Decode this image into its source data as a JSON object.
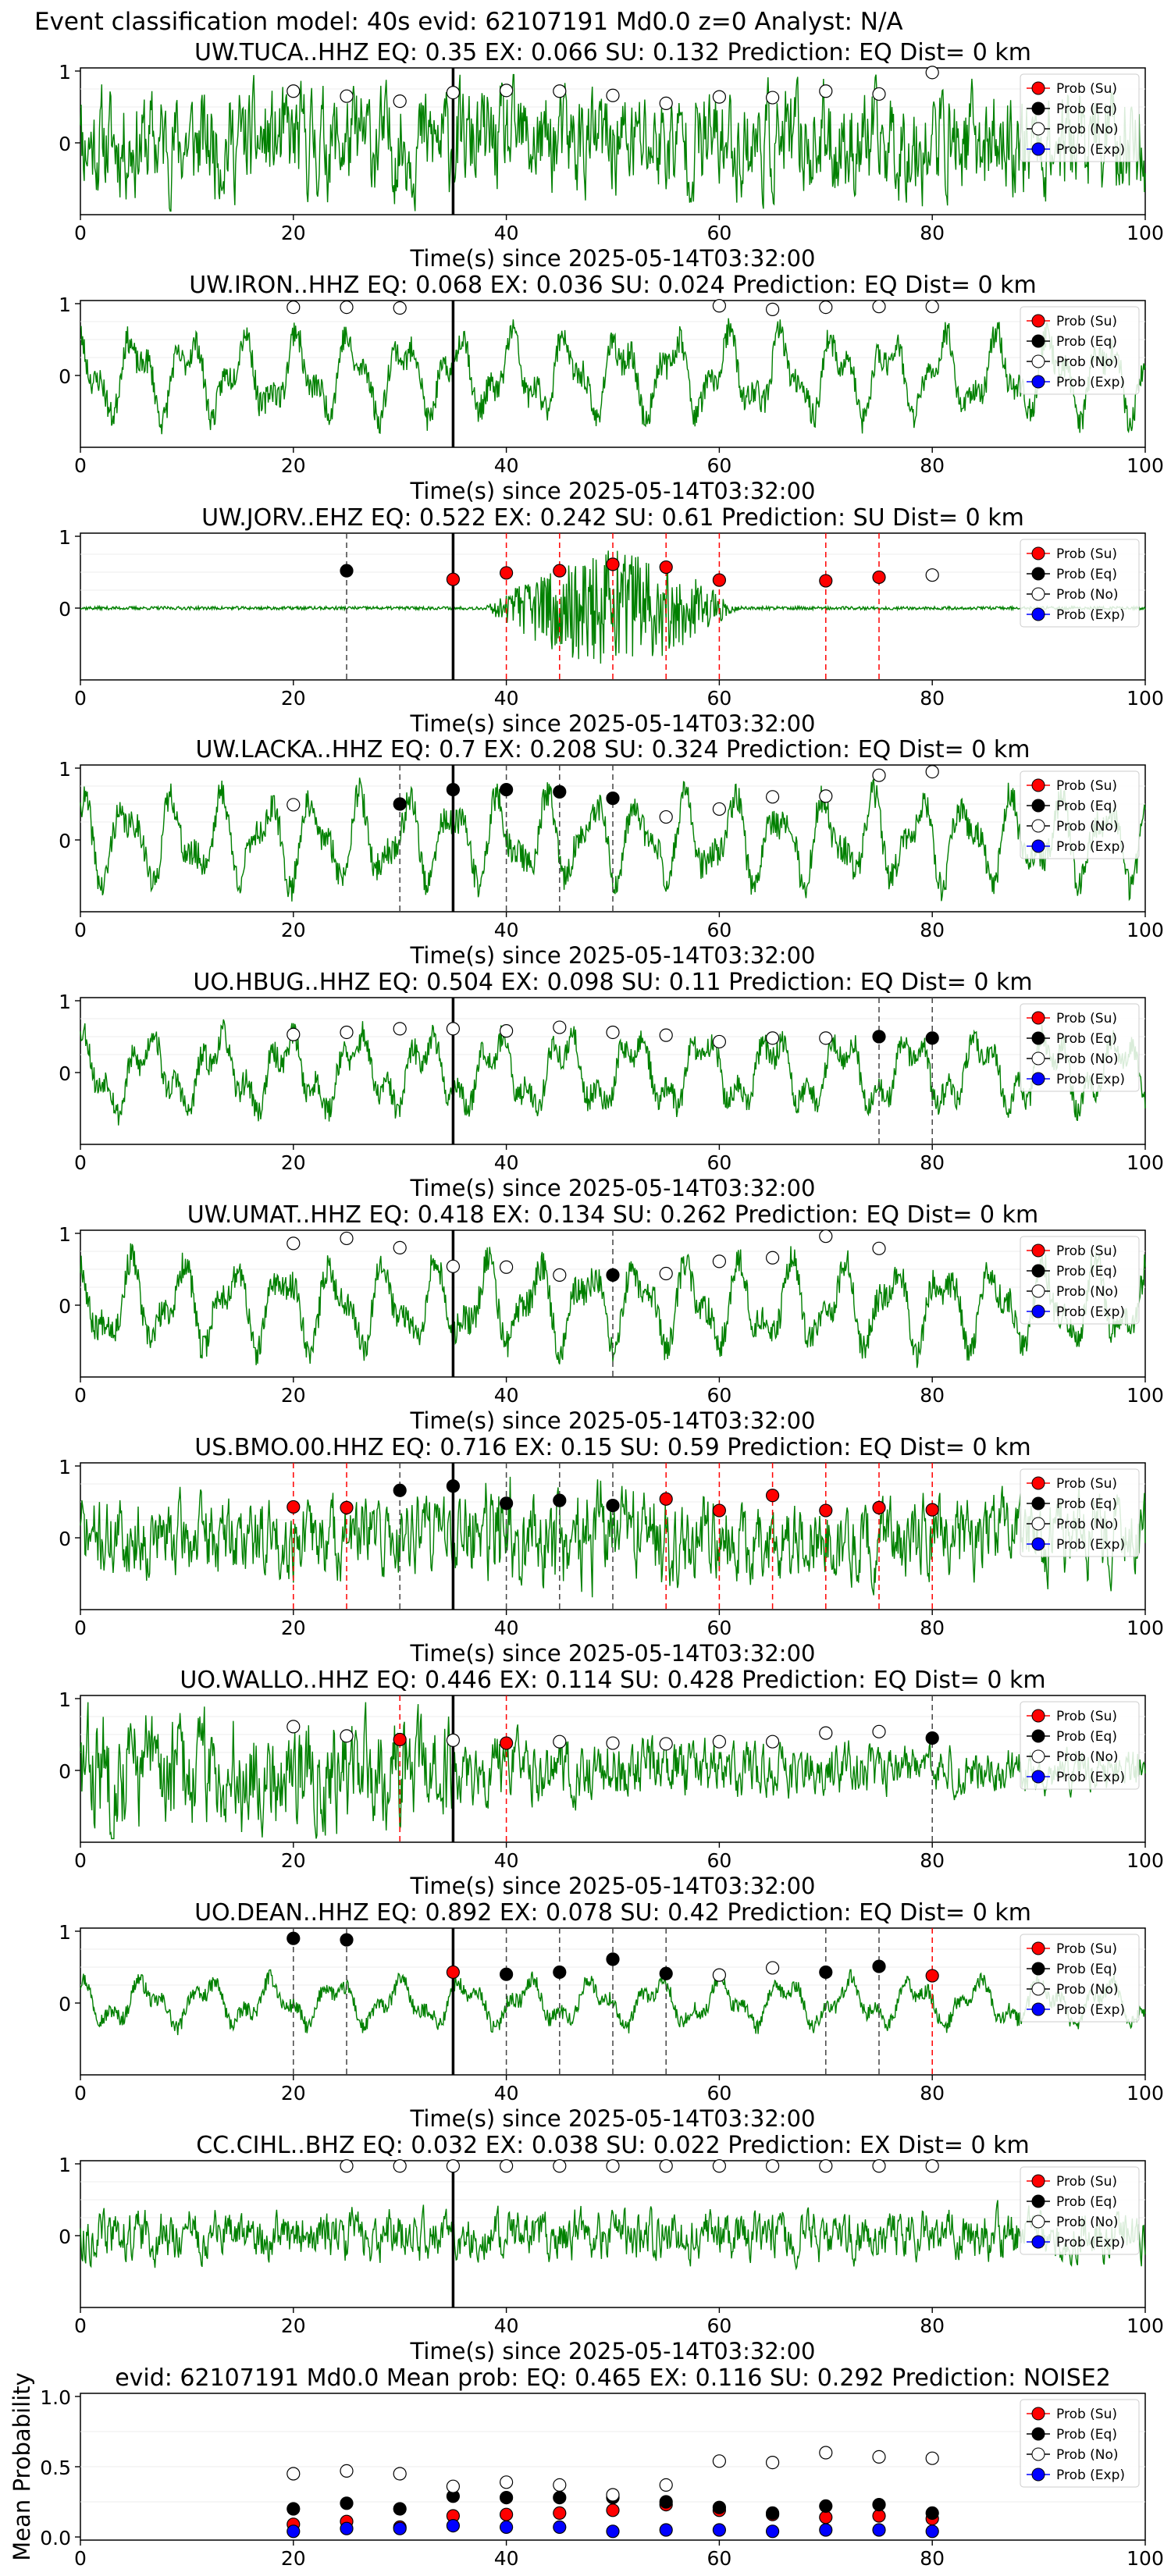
{
  "figure_title": "Event classification model: 40s evid: 62107191 Md0.0 z=0 Analyst: N/A",
  "colors": {
    "su": "#ff0000",
    "eq": "#000000",
    "no": "#ffffff",
    "exp": "#0000ff",
    "wave": "#008000",
    "pick": "#000000"
  },
  "chart_data": [
    {
      "type": "line",
      "title": "UW.TUCA..HHZ   EQ: 0.35  EX: 0.066  SU: 0.132   Prediction: EQ    Dist= 0 km",
      "xlabel": "Time(s) since 2025-05-14T03:32:00",
      "xlim": [
        0,
        100
      ],
      "xticks": [
        "0",
        "20",
        "40",
        "60",
        "80",
        "100"
      ],
      "yticks": [
        "1",
        "0"
      ],
      "pick_time": 35,
      "wave": {
        "seed": 11,
        "type": "noise",
        "amp": 0.75,
        "event": false
      },
      "legend": [
        "Prob (Su)",
        "Prob (Eq)",
        "Prob (No)",
        "Prob (Exp)"
      ],
      "points": [
        {
          "x": 20,
          "cls": "no",
          "p": 0.72
        },
        {
          "x": 25,
          "cls": "no",
          "p": 0.65
        },
        {
          "x": 30,
          "cls": "no",
          "p": 0.58
        },
        {
          "x": 35,
          "cls": "no",
          "p": 0.7
        },
        {
          "x": 40,
          "cls": "no",
          "p": 0.73
        },
        {
          "x": 45,
          "cls": "no",
          "p": 0.72
        },
        {
          "x": 50,
          "cls": "no",
          "p": 0.66
        },
        {
          "x": 55,
          "cls": "no",
          "p": 0.55
        },
        {
          "x": 60,
          "cls": "no",
          "p": 0.64
        },
        {
          "x": 65,
          "cls": "no",
          "p": 0.63
        },
        {
          "x": 70,
          "cls": "no",
          "p": 0.72
        },
        {
          "x": 75,
          "cls": "no",
          "p": 0.68
        },
        {
          "x": 80,
          "cls": "no",
          "p": 0.98
        }
      ]
    },
    {
      "type": "line",
      "title": "UW.IRON..HHZ   EQ: 0.068  EX: 0.036  SU: 0.024   Prediction: EQ    Dist= 0 km",
      "xlabel": "Time(s) since 2025-05-14T03:32:00",
      "xlim": [
        0,
        100
      ],
      "xticks": [
        "0",
        "20",
        "40",
        "60",
        "80",
        "100"
      ],
      "yticks": [
        "1",
        "0"
      ],
      "pick_time": 35,
      "wave": {
        "seed": 23,
        "type": "osc",
        "amp": 0.8,
        "event": false
      },
      "legend": [
        "Prob (Su)",
        "Prob (Eq)",
        "Prob (No)",
        "Prob (Exp)"
      ],
      "points": [
        {
          "x": 20,
          "cls": "no",
          "p": 0.95
        },
        {
          "x": 25,
          "cls": "no",
          "p": 0.95
        },
        {
          "x": 30,
          "cls": "no",
          "p": 0.94
        },
        {
          "x": 60,
          "cls": "no",
          "p": 0.97
        },
        {
          "x": 65,
          "cls": "no",
          "p": 0.92
        },
        {
          "x": 70,
          "cls": "no",
          "p": 0.95
        },
        {
          "x": 75,
          "cls": "no",
          "p": 0.96
        },
        {
          "x": 80,
          "cls": "no",
          "p": 0.96
        }
      ]
    },
    {
      "type": "line",
      "title": "UW.JORV..EHZ   EQ: 0.522  EX: 0.242  SU: 0.61   Prediction: SU    Dist= 0 km",
      "xlabel": "Time(s) since 2025-05-14T03:32:00",
      "xlim": [
        0,
        100
      ],
      "xticks": [
        "0",
        "20",
        "40",
        "60",
        "80",
        "100"
      ],
      "yticks": [
        "1",
        "0"
      ],
      "pick_time": 35,
      "wave": {
        "seed": 37,
        "type": "quiet",
        "amp": 0.08,
        "event": true,
        "ev_start": 38,
        "ev_end": 62,
        "ev_amp": 0.85
      },
      "legend": [
        "Prob (Su)",
        "Prob (Eq)",
        "Prob (No)",
        "Prob (Exp)"
      ],
      "points": [
        {
          "x": 25,
          "cls": "eq",
          "p": 0.52
        },
        {
          "x": 35,
          "cls": "su",
          "p": 0.4
        },
        {
          "x": 40,
          "cls": "su",
          "p": 0.49
        },
        {
          "x": 45,
          "cls": "su",
          "p": 0.52
        },
        {
          "x": 50,
          "cls": "su",
          "p": 0.61
        },
        {
          "x": 55,
          "cls": "su",
          "p": 0.57
        },
        {
          "x": 60,
          "cls": "su",
          "p": 0.39
        },
        {
          "x": 70,
          "cls": "su",
          "p": 0.38
        },
        {
          "x": 75,
          "cls": "su",
          "p": 0.43
        },
        {
          "x": 80,
          "cls": "no",
          "p": 0.46
        }
      ]
    },
    {
      "type": "line",
      "title": "UW.LACKA..HHZ   EQ: 0.7  EX: 0.208  SU: 0.324   Prediction: EQ    Dist= 0 km",
      "xlabel": "Time(s) since 2025-05-14T03:32:00",
      "xlim": [
        0,
        100
      ],
      "xticks": [
        "0",
        "20",
        "40",
        "60",
        "80",
        "100"
      ],
      "yticks": [
        "1",
        "0"
      ],
      "pick_time": 35,
      "wave": {
        "seed": 41,
        "type": "osc",
        "amp": 0.85,
        "event": false
      },
      "legend": [
        "Prob (Su)",
        "Prob (Eq)",
        "Prob (No)",
        "Prob (Exp)"
      ],
      "points": [
        {
          "x": 20,
          "cls": "no",
          "p": 0.49
        },
        {
          "x": 30,
          "cls": "eq",
          "p": 0.5
        },
        {
          "x": 35,
          "cls": "eq",
          "p": 0.7
        },
        {
          "x": 40,
          "cls": "eq",
          "p": 0.7
        },
        {
          "x": 45,
          "cls": "eq",
          "p": 0.67
        },
        {
          "x": 50,
          "cls": "eq",
          "p": 0.58
        },
        {
          "x": 55,
          "cls": "no",
          "p": 0.32
        },
        {
          "x": 60,
          "cls": "no",
          "p": 0.43
        },
        {
          "x": 65,
          "cls": "no",
          "p": 0.6
        },
        {
          "x": 70,
          "cls": "no",
          "p": 0.61
        },
        {
          "x": 75,
          "cls": "no",
          "p": 0.9
        },
        {
          "x": 80,
          "cls": "no",
          "p": 0.95
        }
      ]
    },
    {
      "type": "line",
      "title": "UO.HBUG..HHZ   EQ: 0.504  EX: 0.098  SU: 0.11   Prediction: EQ    Dist= 0 km",
      "xlabel": "Time(s) since 2025-05-14T03:32:00",
      "xlim": [
        0,
        100
      ],
      "xticks": [
        "0",
        "20",
        "40",
        "60",
        "80",
        "100"
      ],
      "yticks": [
        "1",
        "0"
      ],
      "pick_time": 35,
      "wave": {
        "seed": 53,
        "type": "osc",
        "amp": 0.75,
        "event": false
      },
      "legend": [
        "Prob (Su)",
        "Prob (Eq)",
        "Prob (No)",
        "Prob (Exp)"
      ],
      "points": [
        {
          "x": 20,
          "cls": "no",
          "p": 0.53
        },
        {
          "x": 25,
          "cls": "no",
          "p": 0.56
        },
        {
          "x": 30,
          "cls": "no",
          "p": 0.61
        },
        {
          "x": 35,
          "cls": "no",
          "p": 0.61
        },
        {
          "x": 40,
          "cls": "no",
          "p": 0.58
        },
        {
          "x": 45,
          "cls": "no",
          "p": 0.63
        },
        {
          "x": 50,
          "cls": "no",
          "p": 0.56
        },
        {
          "x": 55,
          "cls": "no",
          "p": 0.52
        },
        {
          "x": 60,
          "cls": "no",
          "p": 0.43
        },
        {
          "x": 65,
          "cls": "no",
          "p": 0.48
        },
        {
          "x": 70,
          "cls": "no",
          "p": 0.48
        },
        {
          "x": 75,
          "cls": "eq",
          "p": 0.5
        },
        {
          "x": 80,
          "cls": "eq",
          "p": 0.48
        }
      ]
    },
    {
      "type": "line",
      "title": "UW.UMAT..HHZ   EQ: 0.418  EX: 0.134  SU: 0.262   Prediction: EQ    Dist= 0 km",
      "xlabel": "Time(s) since 2025-05-14T03:32:00",
      "xlim": [
        0,
        100
      ],
      "xticks": [
        "0",
        "20",
        "40",
        "60",
        "80",
        "100"
      ],
      "yticks": [
        "1",
        "0"
      ],
      "pick_time": 35,
      "wave": {
        "seed": 67,
        "type": "osc",
        "amp": 0.85,
        "event": false
      },
      "legend": [
        "Prob (Su)",
        "Prob (Eq)",
        "Prob (No)",
        "Prob (Exp)"
      ],
      "points": [
        {
          "x": 20,
          "cls": "no",
          "p": 0.86
        },
        {
          "x": 25,
          "cls": "no",
          "p": 0.93
        },
        {
          "x": 30,
          "cls": "no",
          "p": 0.8
        },
        {
          "x": 35,
          "cls": "no",
          "p": 0.54
        },
        {
          "x": 40,
          "cls": "no",
          "p": 0.53
        },
        {
          "x": 45,
          "cls": "no",
          "p": 0.42
        },
        {
          "x": 50,
          "cls": "eq",
          "p": 0.42
        },
        {
          "x": 55,
          "cls": "no",
          "p": 0.44
        },
        {
          "x": 60,
          "cls": "no",
          "p": 0.61
        },
        {
          "x": 65,
          "cls": "no",
          "p": 0.66
        },
        {
          "x": 70,
          "cls": "no",
          "p": 0.96
        },
        {
          "x": 75,
          "cls": "no",
          "p": 0.79
        }
      ]
    },
    {
      "type": "line",
      "title": "US.BMO.00.HHZ   EQ: 0.716  EX: 0.15  SU: 0.59   Prediction: EQ    Dist= 0 km",
      "xlabel": "Time(s) since 2025-05-14T03:32:00",
      "xlim": [
        0,
        100
      ],
      "xticks": [
        "0",
        "20",
        "40",
        "60",
        "80",
        "100"
      ],
      "yticks": [
        "1",
        "0"
      ],
      "pick_time": 35,
      "wave": {
        "seed": 71,
        "type": "noise",
        "amp": 0.55,
        "event": true,
        "ev_start": 30,
        "ev_end": 60,
        "ev_amp": 0.35
      },
      "legend": [
        "Prob (Su)",
        "Prob (Eq)",
        "Prob (No)",
        "Prob (Exp)"
      ],
      "points": [
        {
          "x": 20,
          "cls": "su",
          "p": 0.43
        },
        {
          "x": 25,
          "cls": "su",
          "p": 0.42
        },
        {
          "x": 30,
          "cls": "eq",
          "p": 0.66
        },
        {
          "x": 35,
          "cls": "eq",
          "p": 0.72
        },
        {
          "x": 40,
          "cls": "eq",
          "p": 0.48
        },
        {
          "x": 45,
          "cls": "eq",
          "p": 0.52
        },
        {
          "x": 50,
          "cls": "eq",
          "p": 0.45
        },
        {
          "x": 55,
          "cls": "su",
          "p": 0.54
        },
        {
          "x": 60,
          "cls": "su",
          "p": 0.38
        },
        {
          "x": 65,
          "cls": "su",
          "p": 0.59
        },
        {
          "x": 70,
          "cls": "su",
          "p": 0.38
        },
        {
          "x": 75,
          "cls": "su",
          "p": 0.42
        },
        {
          "x": 80,
          "cls": "su",
          "p": 0.39
        }
      ]
    },
    {
      "type": "line",
      "title": "UO.WALLO..HHZ   EQ: 0.446  EX: 0.114  SU: 0.428   Prediction: EQ    Dist= 0 km",
      "xlabel": "Time(s) since 2025-05-14T03:32:00",
      "xlim": [
        0,
        100
      ],
      "xticks": [
        "0",
        "20",
        "40",
        "60",
        "80",
        "100"
      ],
      "yticks": [
        "1",
        "0"
      ],
      "pick_time": 35,
      "wave": {
        "seed": 83,
        "type": "noise",
        "amp": 0.8,
        "event": false,
        "decay": true
      },
      "legend": [
        "Prob (Su)",
        "Prob (Eq)",
        "Prob (No)",
        "Prob (Exp)"
      ],
      "points": [
        {
          "x": 20,
          "cls": "no",
          "p": 0.61
        },
        {
          "x": 25,
          "cls": "no",
          "p": 0.48
        },
        {
          "x": 30,
          "cls": "su",
          "p": 0.43
        },
        {
          "x": 35,
          "cls": "no",
          "p": 0.42
        },
        {
          "x": 40,
          "cls": "su",
          "p": 0.38
        },
        {
          "x": 45,
          "cls": "no",
          "p": 0.4
        },
        {
          "x": 50,
          "cls": "no",
          "p": 0.38
        },
        {
          "x": 55,
          "cls": "no",
          "p": 0.37
        },
        {
          "x": 60,
          "cls": "no",
          "p": 0.4
        },
        {
          "x": 65,
          "cls": "no",
          "p": 0.4
        },
        {
          "x": 70,
          "cls": "no",
          "p": 0.52
        },
        {
          "x": 75,
          "cls": "no",
          "p": 0.54
        },
        {
          "x": 80,
          "cls": "eq",
          "p": 0.45
        }
      ]
    },
    {
      "type": "line",
      "title": "UO.DEAN..HHZ   EQ: 0.892  EX: 0.078  SU: 0.42   Prediction: EQ    Dist= 0 km",
      "xlabel": "Time(s) since 2025-05-14T03:32:00",
      "xlim": [
        0,
        100
      ],
      "xticks": [
        "0",
        "20",
        "40",
        "60",
        "80",
        "100"
      ],
      "yticks": [
        "1",
        "0"
      ],
      "pick_time": 35,
      "wave": {
        "seed": 97,
        "type": "osc",
        "amp": 0.45,
        "event": false
      },
      "legend": [
        "Prob (Su)",
        "Prob (Eq)",
        "Prob (No)",
        "Prob (Exp)"
      ],
      "points": [
        {
          "x": 20,
          "cls": "eq",
          "p": 0.9
        },
        {
          "x": 25,
          "cls": "eq",
          "p": 0.88
        },
        {
          "x": 35,
          "cls": "su",
          "p": 0.43
        },
        {
          "x": 40,
          "cls": "eq",
          "p": 0.4
        },
        {
          "x": 45,
          "cls": "eq",
          "p": 0.43
        },
        {
          "x": 50,
          "cls": "eq",
          "p": 0.61
        },
        {
          "x": 55,
          "cls": "eq",
          "p": 0.41
        },
        {
          "x": 60,
          "cls": "no",
          "p": 0.39
        },
        {
          "x": 65,
          "cls": "no",
          "p": 0.49
        },
        {
          "x": 70,
          "cls": "eq",
          "p": 0.43
        },
        {
          "x": 75,
          "cls": "eq",
          "p": 0.51
        },
        {
          "x": 80,
          "cls": "su",
          "p": 0.38
        }
      ]
    },
    {
      "type": "line",
      "title": "CC.CIHL..BHZ   EQ: 0.032  EX: 0.038  SU: 0.022   Prediction: EX    Dist= 0 km",
      "xlabel": "Time(s) since 2025-05-14T03:32:00",
      "xlim": [
        0,
        100
      ],
      "xticks": [
        "0",
        "20",
        "40",
        "60",
        "80",
        "100"
      ],
      "yticks": [
        "1",
        "0"
      ],
      "pick_time": 35,
      "wave": {
        "seed": 113,
        "type": "noise",
        "amp": 0.35,
        "event": false
      },
      "legend": [
        "Prob (Su)",
        "Prob (Eq)",
        "Prob (No)",
        "Prob (Exp)"
      ],
      "points": [
        {
          "x": 25,
          "cls": "no",
          "p": 0.97
        },
        {
          "x": 30,
          "cls": "no",
          "p": 0.97
        },
        {
          "x": 35,
          "cls": "no",
          "p": 0.97
        },
        {
          "x": 40,
          "cls": "no",
          "p": 0.97
        },
        {
          "x": 45,
          "cls": "no",
          "p": 0.97
        },
        {
          "x": 50,
          "cls": "no",
          "p": 0.97
        },
        {
          "x": 55,
          "cls": "no",
          "p": 0.97
        },
        {
          "x": 60,
          "cls": "no",
          "p": 0.97
        },
        {
          "x": 65,
          "cls": "no",
          "p": 0.97
        },
        {
          "x": 70,
          "cls": "no",
          "p": 0.97
        },
        {
          "x": 75,
          "cls": "no",
          "p": 0.97
        },
        {
          "x": 80,
          "cls": "no",
          "p": 0.97
        }
      ]
    },
    {
      "type": "scatter",
      "title": "evid: 62107191  Md0.0   Mean prob:   EQ: 0.465  EX: 0.116  SU: 0.292   Prediction: NOISE2",
      "ylabel": "Mean Probability",
      "xlim": [
        0,
        100
      ],
      "ylim": [
        0,
        1
      ],
      "xticks": [
        "0",
        "20",
        "40",
        "60",
        "80",
        "100"
      ],
      "yticks": [
        "1.0",
        "0.5",
        "0.0"
      ],
      "legend": [
        "Prob (Su)",
        "Prob (Eq)",
        "Prob (No)",
        "Prob (Exp)"
      ],
      "x": [
        20,
        25,
        30,
        35,
        40,
        45,
        50,
        55,
        60,
        65,
        70,
        75,
        80
      ],
      "series": [
        {
          "name": "Prob (Su)",
          "cls": "su",
          "values": [
            0.09,
            0.11,
            0.07,
            0.15,
            0.16,
            0.17,
            0.19,
            0.23,
            0.19,
            0.16,
            0.14,
            0.15,
            0.13
          ]
        },
        {
          "name": "Prob (Eq)",
          "cls": "eq",
          "values": [
            0.2,
            0.24,
            0.2,
            0.29,
            0.28,
            0.28,
            0.28,
            0.25,
            0.21,
            0.17,
            0.22,
            0.23,
            0.17
          ]
        },
        {
          "name": "Prob (No)",
          "cls": "no",
          "values": [
            0.45,
            0.47,
            0.45,
            0.36,
            0.39,
            0.37,
            0.3,
            0.37,
            0.54,
            0.53,
            0.6,
            0.57,
            0.56
          ]
        },
        {
          "name": "Prob (Exp)",
          "cls": "exp",
          "values": [
            0.04,
            0.06,
            0.06,
            0.08,
            0.07,
            0.07,
            0.04,
            0.05,
            0.05,
            0.04,
            0.05,
            0.05,
            0.04
          ]
        }
      ]
    }
  ]
}
